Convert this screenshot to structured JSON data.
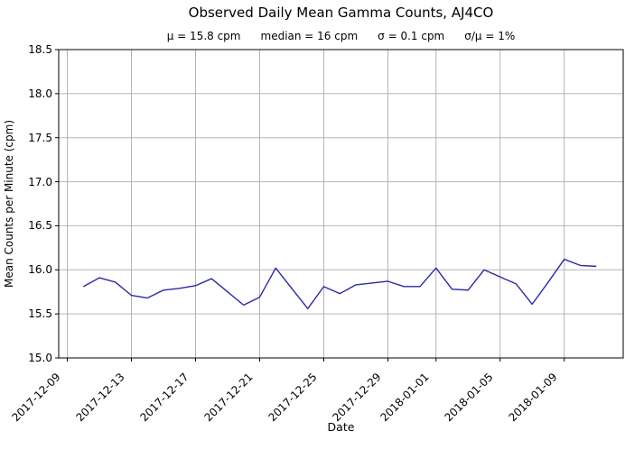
{
  "figure": {
    "stats": {
      "mu": "μ = 15.8 cpm",
      "median": "median = 16 cpm",
      "sigma": "σ = 0.1 cpm",
      "sigma_over_mu": "σ/μ = 1%"
    }
  },
  "chart_data": {
    "type": "line",
    "title": "Observed Daily Mean Gamma Counts, AJ4CO",
    "subtitle": "μ = 15.8 cpm     median = 16 cpm     σ = 0.1 cpm     σ/μ = 1%",
    "xlabel": "Date",
    "ylabel": "Mean Counts per Minute (cpm)",
    "ylim": [
      15.0,
      18.5
    ],
    "ytick_labels": [
      "15.0",
      "15.5",
      "16.0",
      "16.5",
      "17.0",
      "17.5",
      "18.0",
      "18.5"
    ],
    "xtick_labels": [
      "2017-12-09",
      "2017-12-13",
      "2017-12-17",
      "2017-12-21",
      "2017-12-25",
      "2017-12-29",
      "2018-01-01",
      "2018-01-05",
      "2018-01-09"
    ],
    "grid": true,
    "legend": "none",
    "line_color": "#2a2aa8",
    "grid_color": "#b4b4b4",
    "series": [
      {
        "name": "daily_mean_gamma_counts",
        "x": [
          "2017-12-10",
          "2017-12-11",
          "2017-12-12",
          "2017-12-13",
          "2017-12-14",
          "2017-12-15",
          "2017-12-16",
          "2017-12-17",
          "2017-12-18",
          "2017-12-19",
          "2017-12-20",
          "2017-12-21",
          "2017-12-22",
          "2017-12-23",
          "2017-12-24",
          "2017-12-25",
          "2017-12-26",
          "2017-12-27",
          "2017-12-28",
          "2017-12-29",
          "2017-12-30",
          "2017-12-31",
          "2018-01-01",
          "2018-01-02",
          "2018-01-03",
          "2018-01-04",
          "2018-01-05",
          "2018-01-06",
          "2018-01-07",
          "2018-01-08",
          "2018-01-09",
          "2018-01-10",
          "2018-01-11"
        ],
        "y": [
          15.81,
          15.91,
          15.86,
          15.71,
          15.68,
          15.77,
          15.79,
          15.82,
          15.9,
          15.75,
          15.6,
          15.69,
          16.02,
          15.79,
          15.56,
          15.81,
          15.73,
          15.83,
          15.85,
          15.87,
          15.81,
          15.81,
          16.02,
          15.78,
          15.77,
          16.0,
          15.92,
          15.84,
          15.61,
          15.86,
          16.12,
          16.05,
          16.04
        ]
      }
    ]
  }
}
